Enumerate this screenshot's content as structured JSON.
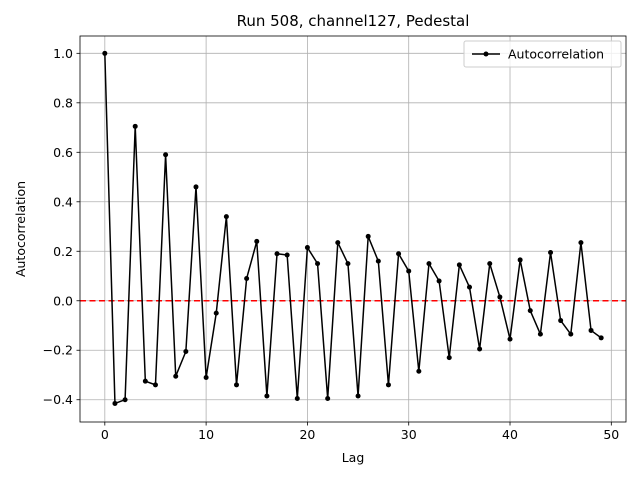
{
  "chart_data": {
    "type": "line",
    "title": "Run 508, channel127, Pedestal",
    "xlabel": "Lag",
    "ylabel": "Autocorrelation",
    "xlim": [
      -2.45,
      51.45
    ],
    "ylim": [
      -0.49,
      1.07
    ],
    "xticks": [
      0,
      10,
      20,
      30,
      40,
      50
    ],
    "yticks": [
      -0.4,
      -0.2,
      0.0,
      0.2,
      0.4,
      0.6,
      0.8,
      1.0
    ],
    "ytick_labels": [
      "−0.4",
      "−0.2",
      "0.0",
      "0.2",
      "0.4",
      "0.6",
      "0.8",
      "1.0"
    ],
    "grid": true,
    "legend_position": "top-right",
    "series": [
      {
        "name": "Autocorrelation",
        "color": "#000000",
        "marker": "dot",
        "x": [
          0,
          1,
          2,
          3,
          4,
          5,
          6,
          7,
          8,
          9,
          10,
          11,
          12,
          13,
          14,
          15,
          16,
          17,
          18,
          19,
          20,
          21,
          22,
          23,
          24,
          25,
          26,
          27,
          28,
          29,
          30,
          31,
          32,
          33,
          34,
          35,
          36,
          37,
          38,
          39,
          40,
          41,
          42,
          43,
          44,
          45,
          46,
          47,
          48,
          49
        ],
        "values": [
          1.0,
          -0.415,
          -0.4,
          0.705,
          -0.325,
          -0.34,
          0.59,
          -0.305,
          -0.205,
          0.46,
          -0.31,
          -0.05,
          0.34,
          -0.34,
          0.09,
          0.24,
          -0.385,
          0.19,
          0.185,
          -0.395,
          0.215,
          0.15,
          -0.395,
          0.235,
          0.15,
          -0.385,
          0.26,
          0.16,
          -0.34,
          0.19,
          0.12,
          -0.285,
          0.15,
          0.08,
          -0.23,
          0.145,
          0.055,
          -0.195,
          0.15,
          0.015,
          -0.155,
          0.165,
          -0.04,
          -0.135,
          0.195,
          -0.08,
          -0.135,
          0.235,
          -0.12,
          -0.15
        ]
      }
    ],
    "reference_line": {
      "y": 0.0,
      "color": "#ff0000",
      "style": "dashed"
    }
  }
}
